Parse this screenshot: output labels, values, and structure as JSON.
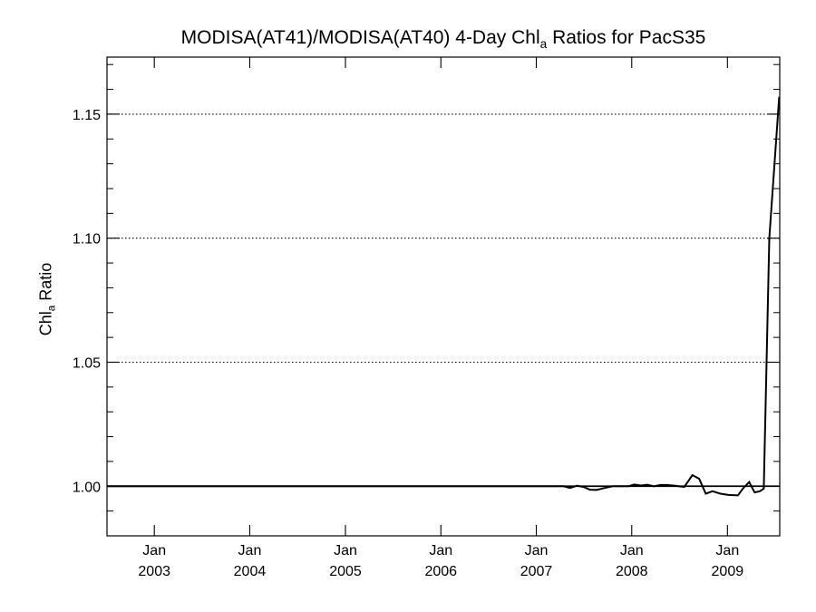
{
  "chart_data": {
    "type": "line",
    "title_parts": [
      "MODISA(AT41)/MODISA(AT40) 4-Day Chl",
      "a",
      " Ratios for PacS35"
    ],
    "ylabel_parts": [
      "Chl",
      "a",
      " Ratio"
    ],
    "xlabel": "",
    "ylim": [
      0.98,
      1.173
    ],
    "xlim": [
      "2002-07-04",
      "2009-07-20"
    ],
    "y_ticks": [
      {
        "value": 1.0,
        "label": "1.00"
      },
      {
        "value": 1.05,
        "label": "1.05"
      },
      {
        "value": 1.1,
        "label": "1.10"
      },
      {
        "value": 1.15,
        "label": "1.15"
      }
    ],
    "x_ticks": [
      {
        "date": "2003-01-01",
        "month": "Jan",
        "year": "2003"
      },
      {
        "date": "2004-01-01",
        "month": "Jan",
        "year": "2004"
      },
      {
        "date": "2005-01-01",
        "month": "Jan",
        "year": "2005"
      },
      {
        "date": "2006-01-01",
        "month": "Jan",
        "year": "2006"
      },
      {
        "date": "2007-01-01",
        "month": "Jan",
        "year": "2007"
      },
      {
        "date": "2008-01-01",
        "month": "Jan",
        "year": "2008"
      },
      {
        "date": "2009-01-01",
        "month": "Jan",
        "year": "2009"
      }
    ],
    "grid": "dotted horizontal at major y ticks",
    "reference_line": 1.0,
    "series": [
      {
        "line_color": "#000000",
        "x": [
          "2002-07-04",
          "2003-01-01",
          "2004-01-01",
          "2005-01-01",
          "2006-01-01",
          "2007-01-01",
          "2007-04-15",
          "2007-05-10",
          "2007-06-05",
          "2007-07-01",
          "2007-07-25",
          "2007-08-20",
          "2007-09-20",
          "2007-10-20",
          "2007-11-20",
          "2007-12-20",
          "2008-01-10",
          "2008-02-05",
          "2008-03-01",
          "2008-03-25",
          "2008-04-20",
          "2008-05-15",
          "2008-06-15",
          "2008-07-20",
          "2008-08-20",
          "2008-09-15",
          "2008-10-10",
          "2008-11-05",
          "2008-12-05",
          "2009-01-05",
          "2009-02-10",
          "2009-03-01",
          "2009-03-25",
          "2009-04-15",
          "2009-05-05",
          "2009-05-20",
          "2009-06-10",
          "2009-07-18"
        ],
        "y": [
          1.0,
          1.0,
          1.0,
          1.0,
          1.0,
          1.0,
          1.0,
          0.9993,
          1.0002,
          0.9997,
          0.9986,
          0.9985,
          0.9993,
          1.0,
          1.0,
          1.0,
          1.0007,
          1.0003,
          1.0006,
          1.0,
          1.0005,
          1.0005,
          1.0002,
          0.9997,
          1.0045,
          1.003,
          0.997,
          0.998,
          0.997,
          0.9965,
          0.9963,
          0.999,
          1.0017,
          0.9975,
          0.998,
          0.999,
          1.1,
          1.157
        ]
      }
    ]
  }
}
